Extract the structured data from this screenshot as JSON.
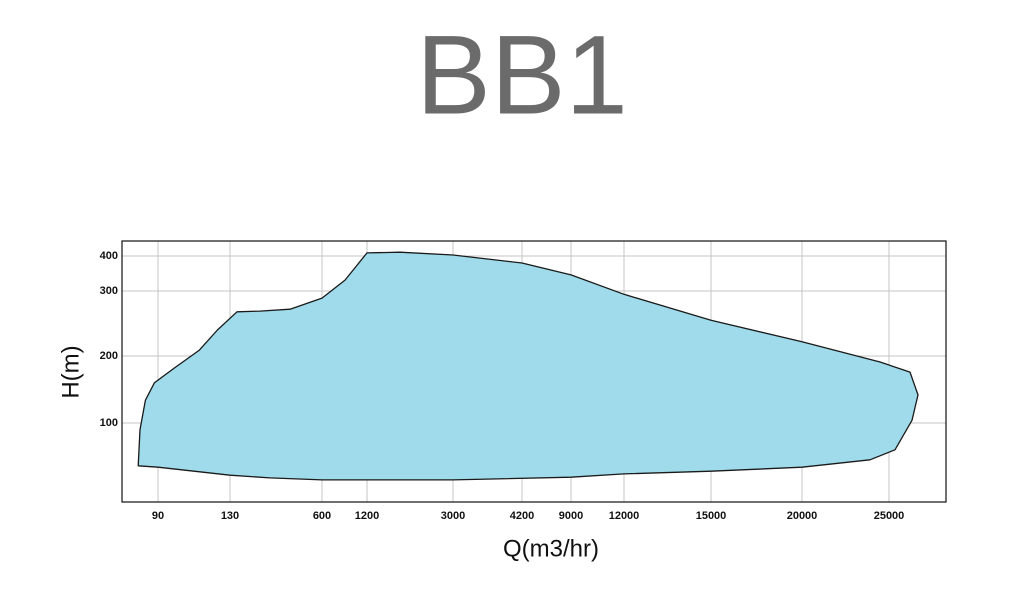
{
  "chart_data": {
    "type": "area",
    "title": "BB1",
    "xlabel": "Q(m3/hr)",
    "ylabel": "H(m)",
    "x": [
      79,
      80,
      83,
      88,
      99,
      113,
      123,
      166,
      283,
      437,
      600,
      907,
      1200,
      1891,
      3000,
      4200,
      9000,
      12000,
      15000,
      20000,
      24483,
      26216,
      26679,
      26332,
      25347,
      23908,
      20000,
      15000,
      12000,
      9000,
      3000,
      1200,
      600,
      334,
      130,
      90
    ],
    "values": [
      36,
      90,
      134,
      160,
      182,
      209,
      240,
      268,
      269,
      272,
      289,
      331,
      409,
      411,
      403,
      380,
      346,
      295,
      255,
      222,
      191,
      176,
      142,
      104,
      60,
      45,
      34,
      28,
      24,
      19,
      15,
      15,
      15,
      18,
      22,
      34
    ],
    "color": "#9fdbea",
    "xlim": [
      70,
      28300
    ],
    "ylim": [
      -18,
      443
    ],
    "xticks": [
      90,
      130,
      600,
      1200,
      3000,
      4200,
      9000,
      12000,
      15000,
      20000,
      25000
    ],
    "yticks": [
      100,
      200,
      300,
      400
    ],
    "grid": true
  }
}
